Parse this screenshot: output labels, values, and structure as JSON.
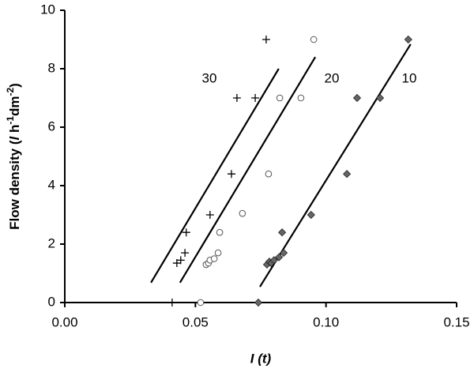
{
  "chart_data": {
    "type": "scatter",
    "x_label": "I (t)",
    "y_label": {
      "main": "Flow density (",
      "unit_l": "l",
      "unit_h": " h",
      "sup1": "-1",
      "unit_dm": "dm",
      "sup2": "-2",
      "close": ")"
    },
    "xlim": [
      0,
      0.15
    ],
    "ylim": [
      0,
      10
    ],
    "xticks": [
      {
        "value": 0,
        "label": "0.00"
      },
      {
        "value": 0.05,
        "label": "0.05"
      },
      {
        "value": 0.1,
        "label": "0.10"
      },
      {
        "value": 0.15,
        "label": "0.15"
      }
    ],
    "yticks": [
      0,
      2,
      4,
      6,
      8,
      10
    ],
    "series": [
      {
        "name": "30",
        "color": "#000000",
        "marker": "plus",
        "x": [
          0.0411,
          0.0429,
          0.0444,
          0.046,
          0.0465,
          0.0556,
          0.0638,
          0.0659,
          0.0729,
          0.0771
        ],
        "values": [
          0,
          1.35,
          1.45,
          1.7,
          2.4,
          3.0,
          4.4,
          7,
          7,
          9
        ],
        "fit_x": [
          0.033,
          0.0819
        ],
        "fit_y": [
          0.68,
          8.0
        ]
      },
      {
        "name": "20",
        "color": "#555555",
        "marker": "circle",
        "x": [
          0.052,
          0.0541,
          0.055,
          0.0556,
          0.0572,
          0.0587,
          0.0593,
          0.068,
          0.078,
          0.0823,
          0.0904,
          0.0953
        ],
        "values": [
          0,
          1.3,
          1.35,
          1.45,
          1.5,
          1.7,
          2.4,
          3.05,
          4.4,
          7,
          7,
          9
        ],
        "fit_x": [
          0.0441,
          0.0959
        ],
        "fit_y": [
          0.68,
          8.4
        ]
      },
      {
        "name": "10",
        "color": "#666666",
        "marker": "diamond",
        "x": [
          0.0741,
          0.0774,
          0.0783,
          0.079,
          0.0801,
          0.082,
          0.0838,
          0.0832,
          0.0943,
          0.108,
          0.1119,
          0.1207,
          0.1315
        ],
        "values": [
          0,
          1.3,
          1.4,
          1.35,
          1.45,
          1.55,
          1.7,
          2.4,
          3.0,
          4.4,
          7,
          7,
          9
        ],
        "fit_x": [
          0.0747,
          0.1324
        ],
        "fit_y": [
          0.54,
          8.84
        ]
      }
    ]
  }
}
